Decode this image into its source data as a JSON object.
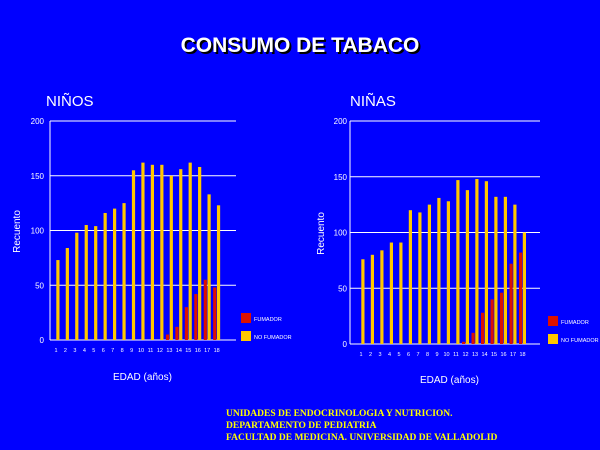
{
  "title": "CONSUMO DE TABACO",
  "footer": {
    "line1": "UNIDADES DE ENDOCRINOLOGIA Y NUTRICION.",
    "line2": "DEPARTAMENTO DE PEDIATRIA",
    "line3": "FACULTAD DE MEDICINA. UNIVERSIDAD DE VALLADOLID"
  },
  "colors": {
    "background": "#0000ff",
    "fumador": "#dd1100",
    "no_fumador": "#ffc800",
    "gridline": "#ffffff",
    "text": "#ffffff",
    "footer_text": "#ffff00"
  },
  "chart_data": [
    {
      "type": "bar",
      "title": "NIÑOS",
      "xlabel": "EDAD (años)",
      "ylabel": "Recuento",
      "ylim": [
        0,
        200
      ],
      "yticks": [
        0,
        50,
        100,
        150,
        200
      ],
      "grid": true,
      "legend_position": "bottom-right",
      "categories": [
        "1",
        "2",
        "3",
        "4",
        "5",
        "6",
        "7",
        "8",
        "9",
        "10",
        "11",
        "12",
        "13",
        "14",
        "15",
        "16",
        "17",
        "18"
      ],
      "series": [
        {
          "name": "FUMADOR",
          "color": "#dd1100",
          "values": [
            0,
            0,
            0,
            0,
            0,
            0,
            0,
            0,
            0,
            0,
            0,
            0,
            5,
            12,
            30,
            42,
            55,
            48
          ]
        },
        {
          "name": "NO FUMADOR",
          "color": "#ffc800",
          "values": [
            73,
            84,
            98,
            105,
            104,
            116,
            120,
            125,
            155,
            162,
            160,
            160,
            150,
            156,
            162,
            158,
            133,
            123
          ]
        }
      ]
    },
    {
      "type": "bar",
      "title": "NIÑAS",
      "xlabel": "EDAD (años)",
      "ylabel": "Recuento",
      "ylim": [
        0,
        200
      ],
      "yticks": [
        0,
        50,
        100,
        150,
        200
      ],
      "grid": true,
      "legend_position": "bottom-right",
      "categories": [
        "1",
        "2",
        "3",
        "4",
        "5",
        "6",
        "7",
        "8",
        "9",
        "10",
        "11",
        "12",
        "13",
        "14",
        "15",
        "16",
        "17",
        "18"
      ],
      "series": [
        {
          "name": "FUMADOR",
          "color": "#dd1100",
          "values": [
            0,
            0,
            0,
            0,
            0,
            0,
            0,
            0,
            0,
            0,
            0,
            2,
            10,
            28,
            40,
            46,
            72,
            82
          ]
        },
        {
          "name": "NO FUMADOR",
          "color": "#ffc800",
          "values": [
            76,
            80,
            84,
            91,
            91,
            120,
            118,
            125,
            131,
            128,
            147,
            138,
            148,
            146,
            132,
            132,
            125,
            100
          ]
        }
      ]
    }
  ]
}
